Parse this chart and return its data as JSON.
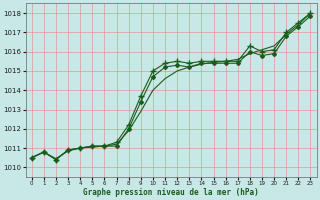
{
  "xlabel": "Graphe pression niveau de la mer (hPa)",
  "x": [
    0,
    1,
    2,
    3,
    4,
    5,
    6,
    7,
    8,
    9,
    10,
    11,
    12,
    13,
    14,
    15,
    16,
    17,
    18,
    19,
    20,
    21,
    22,
    23
  ],
  "series_plus": [
    1010.5,
    1010.8,
    1010.4,
    1010.9,
    1011.0,
    1011.1,
    1011.1,
    1011.3,
    1012.2,
    1013.7,
    1015.0,
    1015.4,
    1015.5,
    1015.4,
    1015.5,
    1015.5,
    1015.5,
    1015.5,
    1016.3,
    1016.0,
    1016.1,
    1017.0,
    1017.5,
    1018.0
  ],
  "series_diamond": [
    1010.5,
    1010.8,
    1010.4,
    1010.9,
    1011.0,
    1011.1,
    1011.1,
    1011.1,
    1012.0,
    1013.4,
    1014.7,
    1015.2,
    1015.3,
    1015.2,
    1015.4,
    1015.4,
    1015.4,
    1015.4,
    1016.0,
    1015.8,
    1015.9,
    1016.8,
    1017.3,
    1017.85
  ],
  "series_smooth": [
    1010.5,
    1010.78,
    1010.45,
    1010.85,
    1011.0,
    1011.05,
    1011.1,
    1011.2,
    1011.9,
    1012.9,
    1014.0,
    1014.6,
    1015.0,
    1015.2,
    1015.35,
    1015.45,
    1015.5,
    1015.6,
    1015.9,
    1016.1,
    1016.3,
    1016.9,
    1017.4,
    1018.0
  ],
  "ylim": [
    1009.5,
    1018.5
  ],
  "yticks": [
    1010,
    1011,
    1012,
    1013,
    1014,
    1015,
    1016,
    1017,
    1018
  ],
  "xlim_min": -0.5,
  "xlim_max": 23.5,
  "bg_color": "#c8e8e8",
  "grid_color": "#f08080",
  "line_color": "#1a5c1a"
}
